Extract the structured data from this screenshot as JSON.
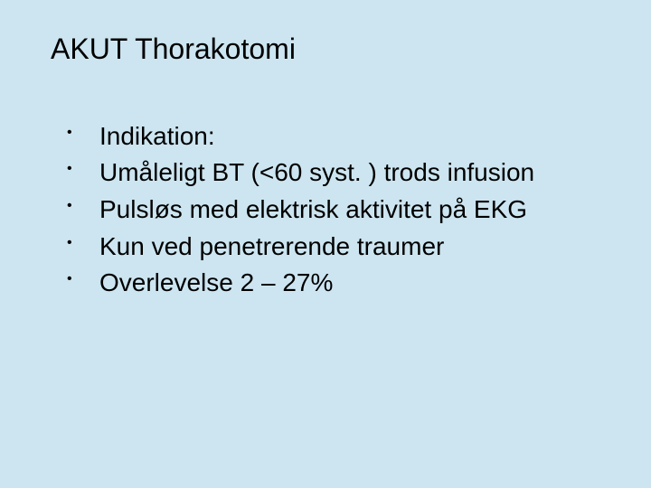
{
  "background_color": "#cce5f0",
  "text_color": "#000000",
  "title": {
    "text": "AKUT Thorakotomi",
    "fontsize": 32,
    "fontweight": 400
  },
  "bullets": {
    "fontsize": 28,
    "bullet_glyph": "•",
    "items": [
      "Indikation:",
      "Umåleligt BT (<60 syst. ) trods infusion",
      "Pulsløs med elektrisk aktivitet på EKG",
      "Kun ved penetrerende traumer",
      "Overlevelse 2 – 27%"
    ]
  }
}
